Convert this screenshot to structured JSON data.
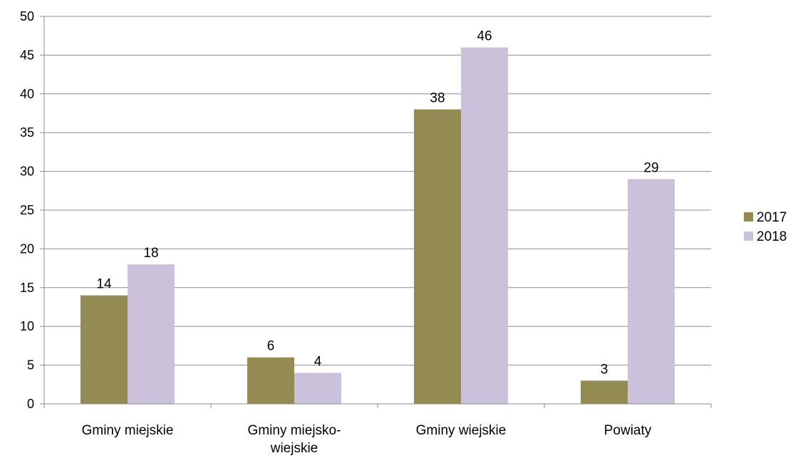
{
  "chart_data": {
    "type": "bar",
    "categories": [
      [
        "Gminy miejskie"
      ],
      [
        "Gminy miejsko-",
        "wiejskie"
      ],
      [
        "Gminy wiejskie"
      ],
      [
        "Powiaty"
      ]
    ],
    "series": [
      {
        "name": "2017",
        "values": [
          14,
          6,
          38,
          3
        ],
        "color": "#948a54"
      },
      {
        "name": "2018",
        "values": [
          18,
          4,
          46,
          29
        ],
        "color": "#ccc1da"
      }
    ],
    "ylim": [
      0,
      50
    ],
    "yticks": [
      0,
      5,
      10,
      15,
      20,
      25,
      30,
      35,
      40,
      45,
      50
    ],
    "grid": true,
    "legend_position": "right",
    "title": "",
    "xlabel": "",
    "ylabel": ""
  }
}
